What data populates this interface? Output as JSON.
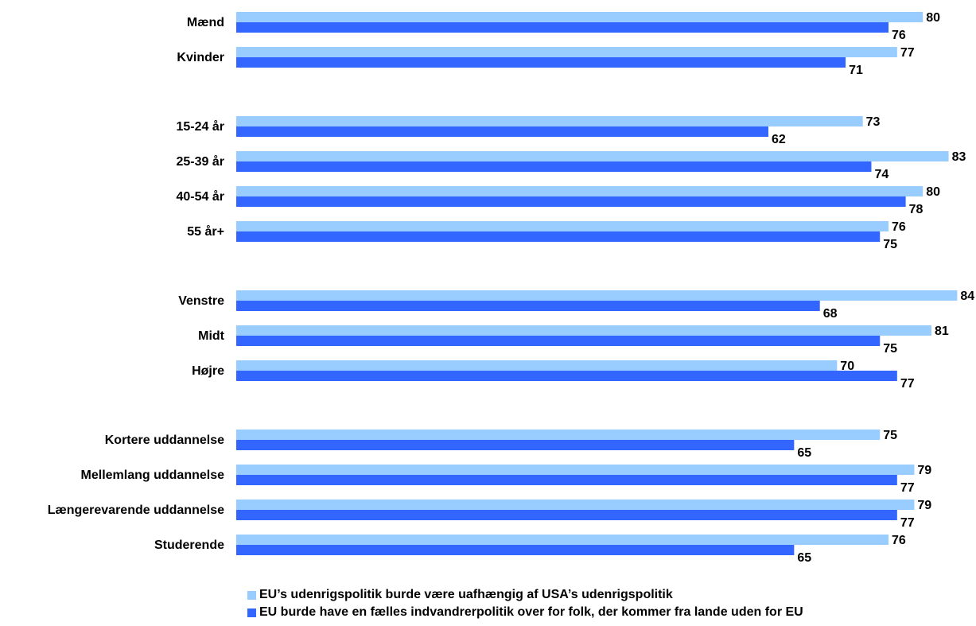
{
  "chart_data": {
    "type": "bar",
    "orientation": "horizontal",
    "categories": [
      "Mænd",
      "Kvinder",
      "15-24 år",
      "25-39 år",
      "40-54 år",
      "55 år+",
      "Venstre",
      "Midt",
      "Højre",
      "Kortere uddannelse",
      "Mellemlang uddannelse",
      "Længerevarende uddannelse",
      "Studerende"
    ],
    "groups": [
      2,
      4,
      3,
      4
    ],
    "series": [
      {
        "name": "EU’s udenrigspolitik burde være uafhængig af USA’s udenrigspolitik",
        "color": "#99ccff",
        "values": [
          80,
          77,
          73,
          83,
          80,
          76,
          84,
          81,
          70,
          75,
          79,
          79,
          76
        ]
      },
      {
        "name": "EU burde have en fælles indvandrerpolitik over for folk, der kommer fra lande uden for EU",
        "color": "#3366ff",
        "values": [
          76,
          71,
          62,
          74,
          78,
          75,
          68,
          75,
          77,
          65,
          77,
          77,
          65
        ]
      }
    ],
    "xlim": [
      0,
      84
    ],
    "grid": false,
    "legend_position": "bottom"
  }
}
